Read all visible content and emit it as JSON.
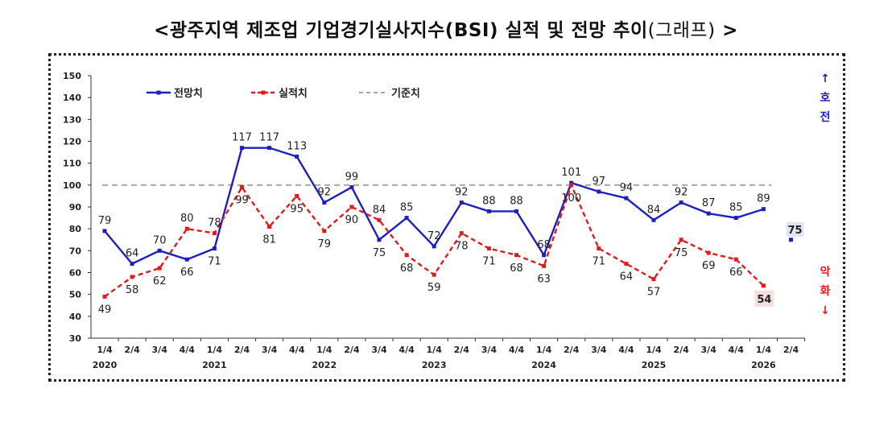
{
  "title": {
    "main": "<광주지역 제조업 기업경기실사지수(BSI) 실적 및 전망 추이",
    "paren": "(그래프)",
    "suffix": " >"
  },
  "chart_data": {
    "type": "line",
    "title": "광주지역 제조업 기업경기실사지수(BSI) 실적 및 전망 추이",
    "ylim": [
      30,
      150
    ],
    "yticks": [
      30,
      40,
      50,
      60,
      70,
      80,
      90,
      100,
      110,
      120,
      130,
      140,
      150
    ],
    "categories": [
      "1/4",
      "2/4",
      "3/4",
      "4/4",
      "1/4",
      "2/4",
      "3/4",
      "4/4",
      "1/4",
      "2/4",
      "3/4",
      "4/4",
      "1/4",
      "2/4",
      "3/4",
      "4/4",
      "1/4",
      "2/4",
      "3/4",
      "4/4",
      "1/4",
      "2/4",
      "3/4",
      "4/4",
      "1/4",
      "2/4"
    ],
    "years": [
      {
        "label": "2020",
        "index": 0
      },
      {
        "label": "2021",
        "index": 4
      },
      {
        "label": "2022",
        "index": 8
      },
      {
        "label": "2023",
        "index": 12
      },
      {
        "label": "2024",
        "index": 16
      },
      {
        "label": "2025",
        "index": 20
      },
      {
        "label": "2026",
        "index": 24
      }
    ],
    "series": [
      {
        "name": "전망치",
        "color": "#1f1fbf",
        "style": "solid",
        "values": [
          79,
          64,
          70,
          66,
          71,
          117,
          117,
          113,
          92,
          99,
          75,
          85,
          72,
          92,
          88,
          88,
          68,
          101,
          97,
          94,
          84,
          92,
          87,
          85,
          89,
          75
        ]
      },
      {
        "name": "실적치",
        "color": "#e01b1b",
        "style": "dashed",
        "values": [
          49,
          58,
          62,
          80,
          78,
          99,
          81,
          95,
          79,
          90,
          84,
          68,
          59,
          78,
          71,
          68,
          63,
          100,
          71,
          64,
          57,
          75,
          69,
          66,
          54,
          null
        ]
      }
    ],
    "baseline": {
      "name": "기준치",
      "value": 100,
      "color": "#a8a8a8"
    },
    "forecast_labels": [
      "79",
      "64",
      "70",
      "66",
      "71",
      "117",
      "117",
      "113",
      "92",
      "99",
      "75",
      "85",
      "72",
      "92",
      "88",
      "88",
      "68",
      "101",
      "97",
      "94",
      "84",
      "92",
      "87",
      "85",
      "89",
      "75"
    ],
    "actual_labels": [
      "49",
      "58",
      "62",
      "80",
      "78",
      "99",
      "81",
      "95",
      "79",
      "90",
      "84",
      "68",
      "59",
      "78",
      "71",
      "68",
      "63",
      "100",
      "71",
      "64",
      "57",
      "75",
      "69",
      "66",
      "54"
    ],
    "highlight": {
      "forecast_last": "75",
      "actual_last": "54"
    },
    "side_top": [
      "↑",
      "호",
      "전"
    ],
    "side_bottom": [
      "악",
      "화",
      "↓"
    ]
  }
}
